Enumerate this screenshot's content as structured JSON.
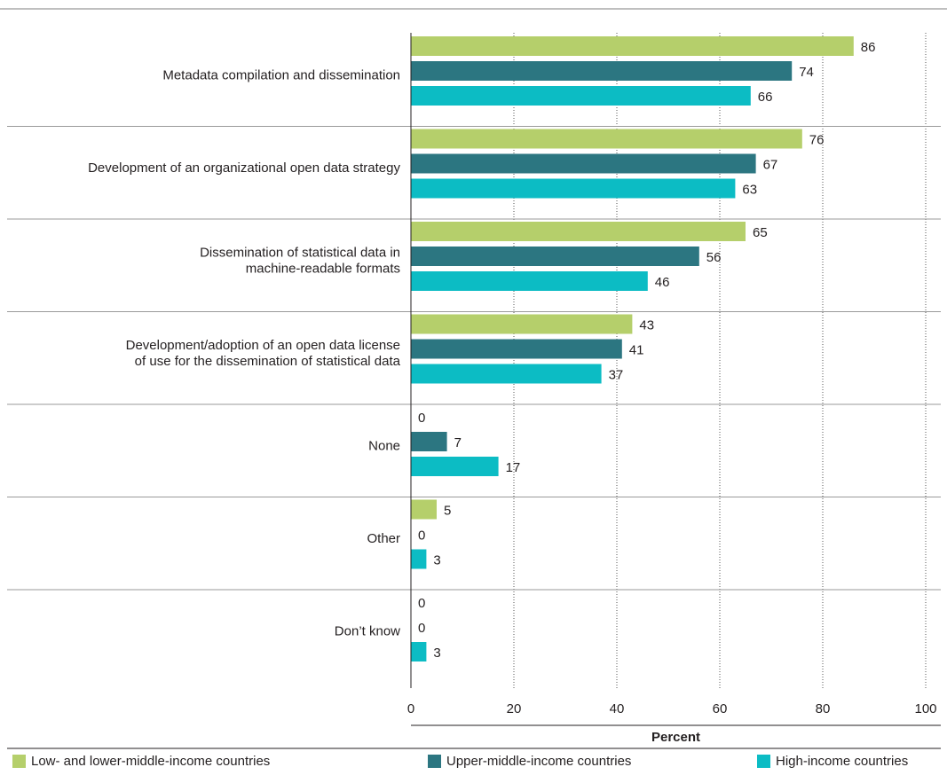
{
  "chart_data": {
    "type": "bar",
    "orientation": "horizontal",
    "title": "",
    "categories": [
      [
        "Metadata compilation and dissemination"
      ],
      [
        "Development of an organizational open data strategy"
      ],
      [
        "Dissemination of statistical data in",
        "machine-readable formats"
      ],
      [
        "Development/adoption of an open data license",
        "of use for the dissemination of statistical data"
      ],
      [
        "None"
      ],
      [
        "Other"
      ],
      [
        "Don’t know"
      ]
    ],
    "series": [
      {
        "name": "Low- and lower-middle-income countries",
        "color": "#b5cf6b",
        "values": [
          86,
          76,
          65,
          43,
          0,
          5,
          0
        ]
      },
      {
        "name": "Upper-middle-income countries",
        "color": "#2c7681",
        "values": [
          74,
          67,
          56,
          41,
          7,
          0,
          0
        ]
      },
      {
        "name": "High-income countries",
        "color": "#0cbcc4",
        "values": [
          66,
          63,
          46,
          37,
          17,
          3,
          3
        ]
      }
    ],
    "xlabel": "Percent",
    "xlim": [
      0,
      100
    ],
    "xticks": [
      0,
      20,
      40,
      60,
      80,
      100
    ],
    "grid": "vertical dotted",
    "legend": "bottom"
  }
}
